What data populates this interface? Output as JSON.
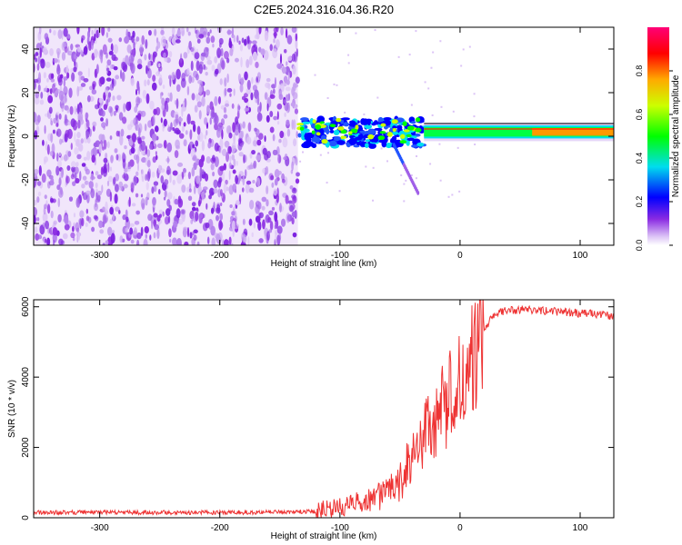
{
  "title": "C2E5.2024.316.04.36.R20",
  "chart_data": [
    {
      "type": "heatmap",
      "title": "C2E5.2024.316.04.36.R20",
      "xlabel": "Height of straight line (km)",
      "ylabel": "Frequency (Hz)",
      "xlim": [
        -355,
        128
      ],
      "ylim": [
        -50,
        50
      ],
      "x_ticks": [
        -300,
        -200,
        -100,
        0,
        100
      ],
      "y_ticks": [
        -40,
        -20,
        0,
        20,
        40
      ],
      "colorbar": {
        "label": "Normalized spectral amplitude",
        "range": [
          0,
          1
        ],
        "ticks": [
          "0.0",
          "0.2",
          "0.4",
          "0.6",
          "0.8"
        ],
        "tick_values": [
          0,
          0.2,
          0.4,
          0.6,
          0.8
        ]
      },
      "regions": [
        {
          "name": "noise",
          "x_range": [
            -355,
            -135
          ],
          "f_range": [
            -50,
            50
          ],
          "amplitude": 0.05
        },
        {
          "name": "signal-onset",
          "x_range": [
            -135,
            -30
          ],
          "f_range": [
            -10,
            8
          ],
          "amplitude": 0.3
        },
        {
          "name": "carrier",
          "x_range": [
            -30,
            128
          ],
          "f_range": [
            0,
            3
          ],
          "amplitude": 0.7
        }
      ],
      "grid": false
    },
    {
      "type": "line",
      "xlabel": "Height of straight line (km)",
      "ylabel": "SNR (10 * v/v)",
      "xlim": [
        -355,
        128
      ],
      "ylim": [
        0,
        6200
      ],
      "x_ticks": [
        -300,
        -200,
        -100,
        0,
        100
      ],
      "y_ticks": [
        0,
        2000,
        4000,
        6000
      ],
      "color": "#ee3333",
      "series": [
        {
          "x": [
            -355,
            -300,
            -250,
            -200,
            -150,
            -120,
            -100,
            -80,
            -60,
            -50,
            -40,
            -30,
            -20,
            -10,
            0,
            10,
            20,
            30,
            40,
            50,
            60,
            70,
            80,
            90,
            100,
            110,
            120,
            128
          ],
          "values": [
            150,
            150,
            150,
            150,
            160,
            180,
            350,
            450,
            700,
            1000,
            1800,
            2400,
            2800,
            3400,
            4000,
            4700,
            5400,
            5800,
            5900,
            5920,
            5900,
            5880,
            5860,
            5840,
            5820,
            5800,
            5760,
            5720
          ]
        }
      ],
      "grid": false
    }
  ]
}
